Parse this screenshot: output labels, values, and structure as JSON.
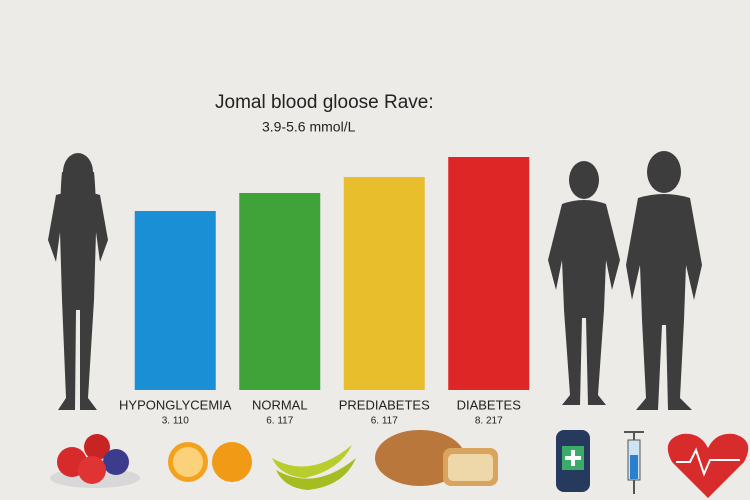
{
  "chart_data": {
    "type": "bar",
    "title": "Jomal blood gloose Rave:",
    "subtitle": "3.9-5.6 mmol/L",
    "categories": [
      "HYPONGLYCEMIA",
      "NORMAL",
      "PREDIABETES",
      "DIABETES"
    ],
    "notes": [
      "3. 110",
      "6. 117",
      "6. 117",
      "8. 217"
    ],
    "values": [
      179,
      197,
      213,
      233
    ],
    "colors": [
      "#1a8fd6",
      "#3fa33a",
      "#e8be2c",
      "#de2626"
    ],
    "ylim": [
      0,
      250
    ]
  }
}
